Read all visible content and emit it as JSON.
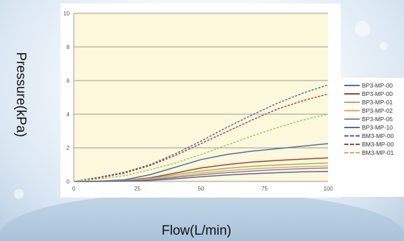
{
  "labels": {
    "ylabel": "Pressure(kPa)",
    "xlabel": "Flow(L/min)"
  },
  "chart_data": {
    "type": "line",
    "xlabel": "Flow(L/min)",
    "ylabel": "Pressure(kPa)",
    "xlim": [
      0,
      100
    ],
    "ylim": [
      0,
      10
    ],
    "xticks": [
      "0",
      "25",
      "50",
      "75",
      "100"
    ],
    "yticks": [
      "0",
      "2",
      "4",
      "6",
      "8",
      "10"
    ],
    "grid": "horizontal",
    "legend_position": "right",
    "plot_background": "#fbf8dc",
    "x": [
      0,
      10,
      20,
      30,
      40,
      50,
      60,
      70,
      80,
      90,
      100
    ],
    "series": [
      {
        "name": "BP3-MP-00",
        "color": "#4a6ea8",
        "dashed": false,
        "values": [
          0,
          0.02,
          0.1,
          0.4,
          0.85,
          1.3,
          1.6,
          1.8,
          1.95,
          2.1,
          2.25
        ]
      },
      {
        "name": "BP3-MP-00",
        "color": "#b03a3a",
        "dashed": false,
        "values": [
          0,
          0.01,
          0.06,
          0.22,
          0.5,
          0.8,
          1.0,
          1.15,
          1.25,
          1.33,
          1.4
        ]
      },
      {
        "name": "BP3-MP-01",
        "color": "#8fbf4f",
        "dashed": false,
        "values": [
          0,
          0.01,
          0.05,
          0.18,
          0.4,
          0.62,
          0.78,
          0.9,
          0.98,
          1.04,
          1.1
        ]
      },
      {
        "name": "BP3-MP-02",
        "color": "#f2a46b",
        "dashed": false,
        "values": [
          0,
          0.01,
          0.04,
          0.14,
          0.3,
          0.5,
          0.64,
          0.75,
          0.82,
          0.88,
          0.92
        ]
      },
      {
        "name": "BP3-MP-05",
        "color": "#8d7bb5",
        "dashed": false,
        "values": [
          0,
          0.01,
          0.03,
          0.1,
          0.24,
          0.4,
          0.52,
          0.62,
          0.7,
          0.76,
          0.8
        ]
      },
      {
        "name": "BP3-MP-10",
        "color": "#5b6a94",
        "dashed": false,
        "values": [
          0,
          0.0,
          0.02,
          0.06,
          0.16,
          0.28,
          0.38,
          0.46,
          0.52,
          0.57,
          0.6
        ]
      },
      {
        "name": "BM3-MP-00",
        "color": "#4a6ea8",
        "dashed": true,
        "values": [
          0,
          0.25,
          0.55,
          1.0,
          1.65,
          2.4,
          3.2,
          3.95,
          4.65,
          5.25,
          5.75
        ]
      },
      {
        "name": "BM3-MP-00",
        "color": "#b03a3a",
        "dashed": true,
        "values": [
          0,
          0.22,
          0.5,
          0.95,
          1.55,
          2.25,
          2.95,
          3.65,
          4.3,
          4.8,
          5.2
        ]
      },
      {
        "name": "BM3-MP-01",
        "color": "#9ccc55",
        "dashed": true,
        "values": [
          0,
          0.15,
          0.35,
          0.7,
          1.1,
          1.6,
          2.15,
          2.7,
          3.2,
          3.65,
          4.0
        ]
      }
    ]
  }
}
